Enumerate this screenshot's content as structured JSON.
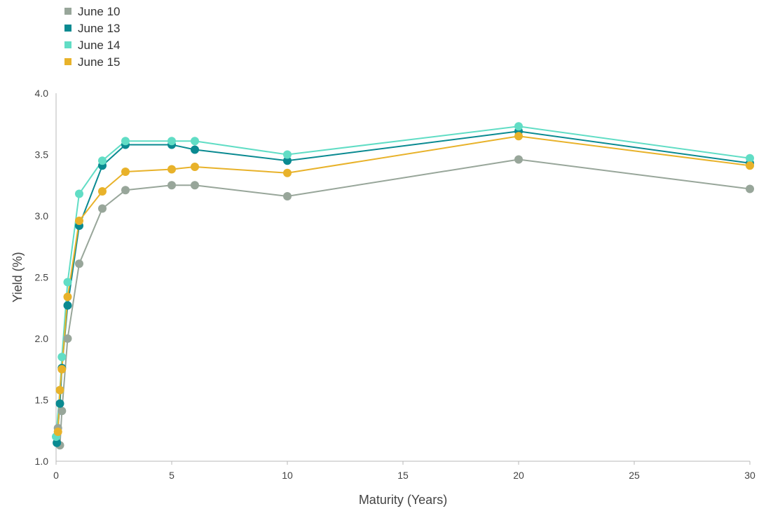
{
  "chart_data": {
    "type": "line",
    "title": "",
    "xlabel": "Maturity (Years)",
    "ylabel": "Yield (%)",
    "xlim": [
      0,
      30
    ],
    "ylim": [
      1.0,
      4.0
    ],
    "x_ticks": [
      "0",
      "5",
      "10",
      "15",
      "20",
      "25",
      "30"
    ],
    "y_ticks": [
      "1.0",
      "1.5",
      "2.0",
      "2.5",
      "3.0",
      "3.5",
      "4.0"
    ],
    "grid": false,
    "legend_position": "top-left",
    "series": [
      {
        "name": "June 10",
        "color": "#98a69a",
        "points": [
          [
            0.083,
            1.27
          ],
          [
            0.167,
            1.13
          ],
          [
            0.25,
            1.41
          ],
          [
            0.5,
            2.0
          ],
          [
            1,
            2.61
          ],
          [
            2,
            3.06
          ],
          [
            3,
            3.21
          ],
          [
            5,
            3.25
          ],
          [
            6,
            3.25
          ],
          [
            10,
            3.16
          ],
          [
            20,
            3.46
          ],
          [
            30,
            3.22
          ]
        ]
      },
      {
        "name": "June 13",
        "color": "#0a8a91",
        "points": [
          [
            0.033,
            1.15
          ],
          [
            0.167,
            1.47
          ],
          [
            0.25,
            1.76
          ],
          [
            0.5,
            2.27
          ],
          [
            1,
            2.92
          ],
          [
            2,
            3.41
          ],
          [
            3,
            3.58
          ],
          [
            5,
            3.58
          ],
          [
            6,
            3.54
          ],
          [
            10,
            3.45
          ],
          [
            20,
            3.69
          ],
          [
            30,
            3.43
          ]
        ]
      },
      {
        "name": "June 14",
        "color": "#61ddc5",
        "points": [
          [
            0.0,
            1.2
          ],
          [
            0.167,
            1.58
          ],
          [
            0.25,
            1.85
          ],
          [
            0.5,
            2.46
          ],
          [
            1,
            3.18
          ],
          [
            2,
            3.45
          ],
          [
            3,
            3.61
          ],
          [
            5,
            3.61
          ],
          [
            6,
            3.61
          ],
          [
            10,
            3.5
          ],
          [
            20,
            3.73
          ],
          [
            30,
            3.47
          ]
        ]
      },
      {
        "name": "June 15",
        "color": "#e8b22a",
        "points": [
          [
            0.083,
            1.24
          ],
          [
            0.167,
            1.58
          ],
          [
            0.25,
            1.75
          ],
          [
            0.5,
            2.34
          ],
          [
            1,
            2.96
          ],
          [
            2,
            3.2
          ],
          [
            3,
            3.36
          ],
          [
            5,
            3.38
          ],
          [
            6,
            3.4
          ],
          [
            10,
            3.35
          ],
          [
            20,
            3.65
          ],
          [
            30,
            3.41
          ]
        ]
      }
    ]
  }
}
